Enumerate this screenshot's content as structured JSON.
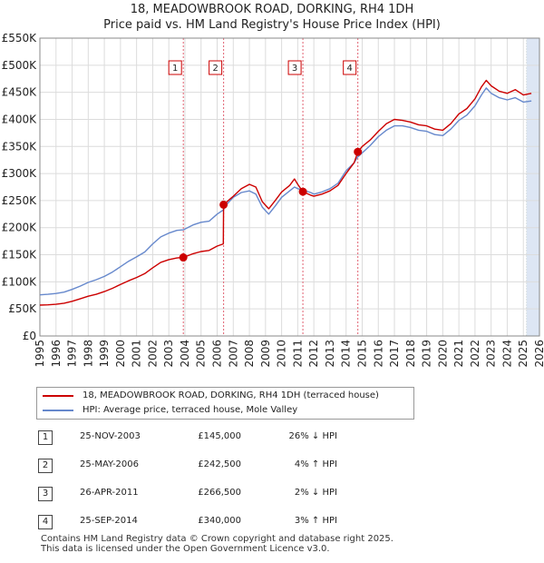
{
  "title_line1": "18, MEADOWBROOK ROAD, DORKING, RH4 1DH",
  "title_line2": "Price paid vs. HM Land Registry's House Price Index (HPI)",
  "colors": {
    "price": "#cc0000",
    "hpi": "#6688cc",
    "marker_line": "#e06070",
    "band": "#dde6f4"
  },
  "legend": {
    "price_label": "18, MEADOWBROOK ROAD, DORKING, RH4 1DH (terraced house)",
    "hpi_label": "HPI: Average price, terraced house, Mole Valley"
  },
  "sales": [
    {
      "num": "1",
      "date": "25-NOV-2003",
      "price": "£145,000",
      "hpi": "26% ↓ HPI"
    },
    {
      "num": "2",
      "date": "25-MAY-2006",
      "price": "£242,500",
      "hpi": "4% ↑ HPI"
    },
    {
      "num": "3",
      "date": "26-APR-2011",
      "price": "£266,500",
      "hpi": "2% ↓ HPI"
    },
    {
      "num": "4",
      "date": "25-SEP-2014",
      "price": "£340,000",
      "hpi": "3% ↑ HPI"
    }
  ],
  "footer": {
    "line1": "Contains HM Land Registry data © Crown copyright and database right 2025.",
    "line2": "This data is licensed under the Open Government Licence v3.0."
  },
  "chart_data": {
    "type": "line",
    "title": "18, MEADOWBROOK ROAD, DORKING, RH4 1DH — Price paid vs. HM Land Registry's House Price Index (HPI)",
    "xlim": [
      1995,
      2026
    ],
    "ylim": [
      0,
      550000
    ],
    "x_ticks": [
      "1995",
      "1996",
      "1997",
      "1998",
      "1999",
      "2000",
      "2001",
      "2002",
      "2003",
      "2004",
      "2005",
      "2006",
      "2007",
      "2008",
      "2009",
      "2010",
      "2011",
      "2012",
      "2013",
      "2014",
      "2015",
      "2016",
      "2017",
      "2018",
      "2019",
      "2020",
      "2021",
      "2022",
      "2023",
      "2024",
      "2025",
      "2026"
    ],
    "y_ticks": [
      {
        "value": 0,
        "label": "£0"
      },
      {
        "value": 50000,
        "label": "£50K"
      },
      {
        "value": 100000,
        "label": "£100K"
      },
      {
        "value": 150000,
        "label": "£150K"
      },
      {
        "value": 200000,
        "label": "£200K"
      },
      {
        "value": 250000,
        "label": "£250K"
      },
      {
        "value": 300000,
        "label": "£300K"
      },
      {
        "value": 350000,
        "label": "£350K"
      },
      {
        "value": 400000,
        "label": "£400K"
      },
      {
        "value": 450000,
        "label": "£450K"
      },
      {
        "value": 500000,
        "label": "£500K"
      },
      {
        "value": 550000,
        "label": "£550K"
      }
    ],
    "grid": true,
    "shaded_span": [
      2025.2,
      2026
    ],
    "series": [
      {
        "name": "HPI: Average price, terraced house, Mole Valley",
        "points": [
          [
            1995,
            76000
          ],
          [
            1995.5,
            77000
          ],
          [
            1996,
            78500
          ],
          [
            1996.5,
            81000
          ],
          [
            1997,
            86000
          ],
          [
            1997.5,
            92000
          ],
          [
            1998,
            99000
          ],
          [
            1998.5,
            104000
          ],
          [
            1999,
            110000
          ],
          [
            1999.5,
            118000
          ],
          [
            2000,
            128000
          ],
          [
            2000.5,
            138000
          ],
          [
            2001,
            146000
          ],
          [
            2001.5,
            155000
          ],
          [
            2002,
            170000
          ],
          [
            2002.5,
            183000
          ],
          [
            2003,
            190000
          ],
          [
            2003.5,
            195000
          ],
          [
            2003.9,
            196000
          ],
          [
            2004.5,
            205000
          ],
          [
            2005,
            210000
          ],
          [
            2005.5,
            212000
          ],
          [
            2006,
            225000
          ],
          [
            2006.4,
            233000
          ],
          [
            2006.5,
            240000
          ],
          [
            2007,
            256000
          ],
          [
            2007.5,
            265000
          ],
          [
            2008,
            268000
          ],
          [
            2008.4,
            262000
          ],
          [
            2008.8,
            238000
          ],
          [
            2009.2,
            225000
          ],
          [
            2009.6,
            240000
          ],
          [
            2010,
            256000
          ],
          [
            2010.5,
            268000
          ],
          [
            2010.8,
            275000
          ],
          [
            2011,
            272000
          ],
          [
            2011.3,
            270000
          ],
          [
            2011.8,
            265000
          ],
          [
            2012,
            262000
          ],
          [
            2012.5,
            266000
          ],
          [
            2013,
            272000
          ],
          [
            2013.5,
            282000
          ],
          [
            2014,
            305000
          ],
          [
            2014.5,
            320000
          ],
          [
            2014.7,
            330000
          ],
          [
            2015,
            338000
          ],
          [
            2015.5,
            352000
          ],
          [
            2016,
            368000
          ],
          [
            2016.5,
            380000
          ],
          [
            2017,
            388000
          ],
          [
            2017.5,
            388000
          ],
          [
            2018,
            385000
          ],
          [
            2018.5,
            380000
          ],
          [
            2019,
            378000
          ],
          [
            2019.5,
            372000
          ],
          [
            2020,
            370000
          ],
          [
            2020.5,
            382000
          ],
          [
            2021,
            398000
          ],
          [
            2021.5,
            408000
          ],
          [
            2022,
            425000
          ],
          [
            2022.4,
            445000
          ],
          [
            2022.7,
            458000
          ],
          [
            2023,
            448000
          ],
          [
            2023.5,
            440000
          ],
          [
            2024,
            436000
          ],
          [
            2024.5,
            440000
          ],
          [
            2025,
            432000
          ],
          [
            2025.5,
            434000
          ]
        ]
      },
      {
        "name": "18, MEADOWBROOK ROAD, DORKING, RH4 1DH (terraced house)",
        "points": [
          [
            1995,
            57000
          ],
          [
            1995.5,
            57500
          ],
          [
            1996,
            58500
          ],
          [
            1996.5,
            60500
          ],
          [
            1997,
            64000
          ],
          [
            1997.5,
            68500
          ],
          [
            1998,
            73500
          ],
          [
            1998.5,
            77000
          ],
          [
            1999,
            82000
          ],
          [
            1999.5,
            88000
          ],
          [
            2000,
            95000
          ],
          [
            2000.5,
            102000
          ],
          [
            2001,
            108000
          ],
          [
            2001.5,
            115000
          ],
          [
            2002,
            126000
          ],
          [
            2002.5,
            136000
          ],
          [
            2003,
            141000
          ],
          [
            2003.5,
            144000
          ],
          [
            2003.9,
            145000
          ],
          [
            2004.5,
            152000
          ],
          [
            2005,
            156000
          ],
          [
            2005.5,
            158000
          ],
          [
            2006,
            166000
          ],
          [
            2006.38,
            170000
          ],
          [
            2006.4,
            242500
          ],
          [
            2007,
            258000
          ],
          [
            2007.5,
            272000
          ],
          [
            2008,
            280000
          ],
          [
            2008.4,
            275000
          ],
          [
            2008.8,
            248000
          ],
          [
            2009.2,
            235000
          ],
          [
            2009.6,
            250000
          ],
          [
            2010,
            266000
          ],
          [
            2010.5,
            278000
          ],
          [
            2010.8,
            290000
          ],
          [
            2011,
            280000
          ],
          [
            2011.32,
            266500
          ],
          [
            2011.8,
            260000
          ],
          [
            2012,
            258000
          ],
          [
            2012.5,
            262000
          ],
          [
            2013,
            268000
          ],
          [
            2013.5,
            278000
          ],
          [
            2014,
            300000
          ],
          [
            2014.5,
            320000
          ],
          [
            2014.73,
            340000
          ],
          [
            2015,
            350000
          ],
          [
            2015.5,
            362000
          ],
          [
            2016,
            378000
          ],
          [
            2016.5,
            392000
          ],
          [
            2017,
            400000
          ],
          [
            2017.5,
            398000
          ],
          [
            2018,
            395000
          ],
          [
            2018.5,
            390000
          ],
          [
            2019,
            388000
          ],
          [
            2019.5,
            382000
          ],
          [
            2020,
            380000
          ],
          [
            2020.5,
            392000
          ],
          [
            2021,
            410000
          ],
          [
            2021.5,
            420000
          ],
          [
            2022,
            438000
          ],
          [
            2022.4,
            460000
          ],
          [
            2022.7,
            472000
          ],
          [
            2023,
            462000
          ],
          [
            2023.5,
            452000
          ],
          [
            2024,
            448000
          ],
          [
            2024.5,
            455000
          ],
          [
            2025,
            445000
          ],
          [
            2025.5,
            448000
          ]
        ]
      }
    ],
    "annotations": [
      {
        "label": "1",
        "x": 2003.9,
        "y": 145000
      },
      {
        "label": "2",
        "x": 2006.4,
        "y": 242500
      },
      {
        "label": "3",
        "x": 2011.32,
        "y": 266500
      },
      {
        "label": "4",
        "x": 2014.73,
        "y": 340000
      }
    ]
  }
}
